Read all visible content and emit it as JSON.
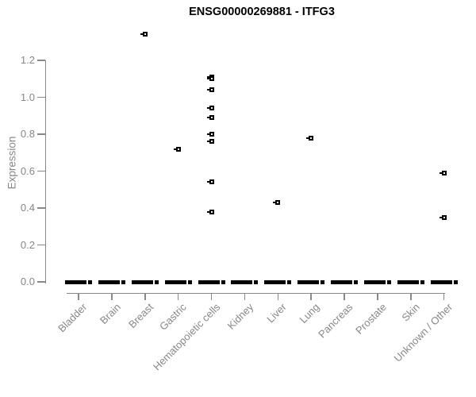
{
  "chart_data": {
    "type": "scatter",
    "subtype": "strip-plot",
    "title": "ENSG00000269881 - ITFG3",
    "xlabel": "",
    "ylabel": "Expression",
    "ylim": [
      0.0,
      1.2
    ],
    "yticks": [
      0.0,
      0.2,
      0.4,
      0.6,
      0.8,
      1.0,
      1.2
    ],
    "grid": false,
    "legend": "none",
    "marker": "open-square",
    "categories": [
      "Bladder",
      "Brain",
      "Breast",
      "Gastric",
      "Hematopoietic cells",
      "Kidney",
      "Liver",
      "Lung",
      "Pancreas",
      "Prostate",
      "Skin",
      "Unknown / Other"
    ],
    "series": [
      {
        "category": "Bladder",
        "nonzero_values": [],
        "zero_cluster": true
      },
      {
        "category": "Brain",
        "nonzero_values": [],
        "zero_cluster": true
      },
      {
        "category": "Breast",
        "nonzero_values": [
          1.34
        ],
        "zero_cluster": true
      },
      {
        "category": "Gastric",
        "nonzero_values": [
          0.72
        ],
        "zero_cluster": true
      },
      {
        "category": "Hematopoietic cells",
        "nonzero_values": [
          1.11,
          1.1,
          1.04,
          0.94,
          0.89,
          0.8,
          0.76,
          0.54,
          0.38
        ],
        "zero_cluster": true
      },
      {
        "category": "Kidney",
        "nonzero_values": [],
        "zero_cluster": true
      },
      {
        "category": "Liver",
        "nonzero_values": [
          0.43
        ],
        "zero_cluster": true
      },
      {
        "category": "Lung",
        "nonzero_values": [
          0.78
        ],
        "zero_cluster": true
      },
      {
        "category": "Pancreas",
        "nonzero_values": [],
        "zero_cluster": true
      },
      {
        "category": "Prostate",
        "nonzero_values": [],
        "zero_cluster": true
      },
      {
        "category": "Skin",
        "nonzero_values": [],
        "zero_cluster": true
      },
      {
        "category": "Unknown / Other",
        "nonzero_values": [
          0.59,
          0.35
        ],
        "zero_cluster": true
      }
    ],
    "annotations": "Dense cluster of overlapping points at 0.0 in every category drawn as a thick black dash; Breast outlier at 1.34 sits above the 1.2 axis maximum."
  },
  "colors": {
    "axis": "#888888",
    "axis_text": "#878787",
    "points": "#000000",
    "title": "#000000",
    "background": "#ffffff"
  }
}
